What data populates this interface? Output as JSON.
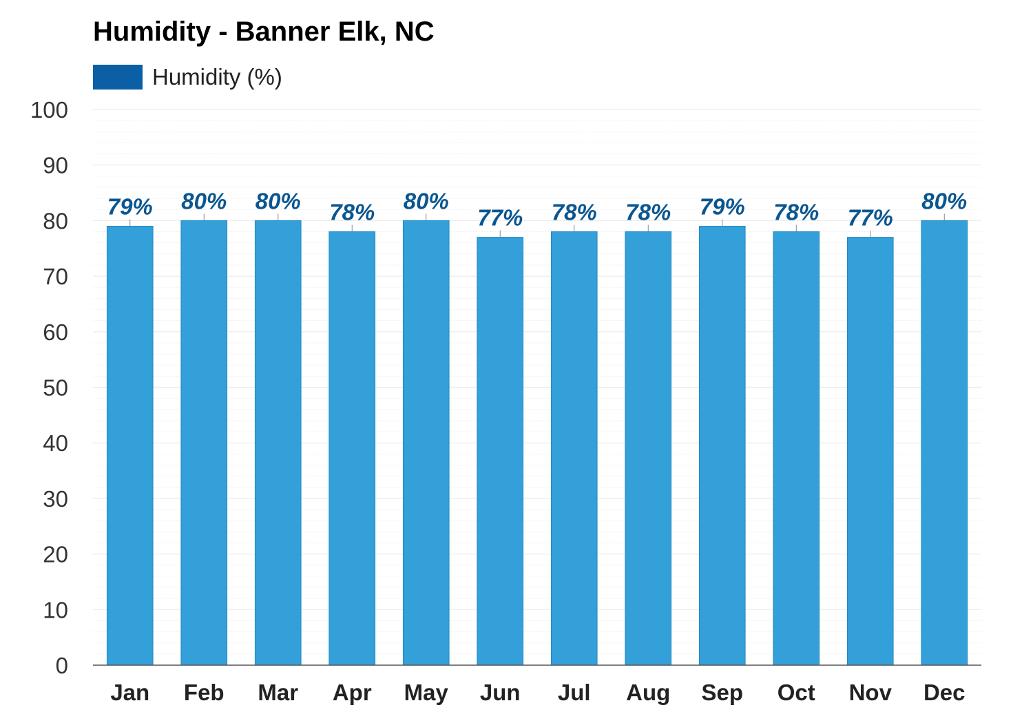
{
  "colors": {
    "bar_fill": "#34a0da",
    "bar_stroke": "#1f86c2",
    "legend_swatch": "#0b5fa5",
    "data_label": "#0a5690",
    "grid": "#ececec",
    "axis": "#555555"
  },
  "chart_data": {
    "type": "bar",
    "title": "Humidity - Banner Elk, NC",
    "categories": [
      "Jan",
      "Feb",
      "Mar",
      "Apr",
      "May",
      "Jun",
      "Jul",
      "Aug",
      "Sep",
      "Oct",
      "Nov",
      "Dec"
    ],
    "series": [
      {
        "name": "Humidity (%)",
        "values": [
          79,
          80,
          80,
          78,
          80,
          77,
          78,
          78,
          79,
          78,
          77,
          80
        ]
      }
    ],
    "data_labels": [
      "79%",
      "80%",
      "80%",
      "78%",
      "80%",
      "77%",
      "78%",
      "78%",
      "79%",
      "78%",
      "77%",
      "80%"
    ],
    "yticks": [
      "0",
      "10",
      "20",
      "30",
      "40",
      "50",
      "60",
      "70",
      "80",
      "90",
      "100"
    ],
    "ylim": [
      0,
      100
    ],
    "xlabel": "",
    "ylabel": "",
    "grid": true,
    "legend_position": "top-left"
  }
}
